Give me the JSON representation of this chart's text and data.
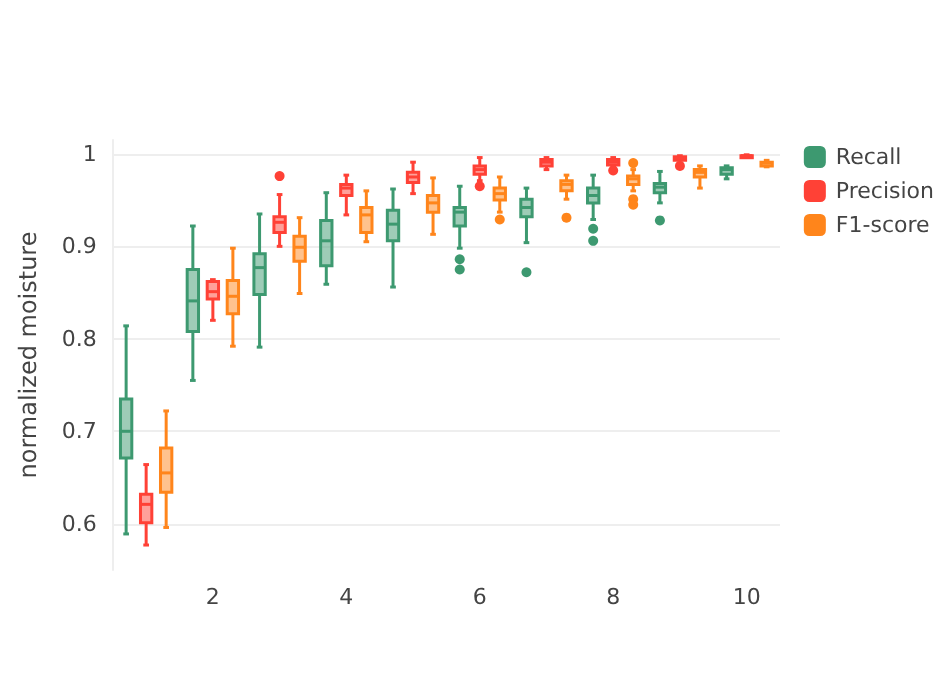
{
  "chart_data": {
    "type": "box",
    "ylabel": "normalized moisture",
    "categories": [
      null,
      "2",
      null,
      "4",
      null,
      "6",
      null,
      "8",
      null,
      "10"
    ],
    "ylim": [
      0.55,
      1.015
    ],
    "yticks": [
      0.6,
      0.7,
      0.8,
      0.9,
      1
    ],
    "grid": "y",
    "legend": "top right",
    "series": [
      {
        "name": "Recall",
        "color": "#3d9970",
        "boxes": [
          {
            "low": 0.589,
            "q1": 0.671,
            "median": 0.7,
            "q3": 0.735,
            "high": 0.814
          },
          {
            "low": 0.755,
            "q1": 0.808,
            "median": 0.841,
            "q3": 0.875,
            "high": 0.922
          },
          {
            "low": 0.791,
            "q1": 0.848,
            "median": 0.877,
            "q3": 0.892,
            "high": 0.935
          },
          {
            "low": 0.859,
            "q1": 0.879,
            "median": 0.906,
            "q3": 0.928,
            "high": 0.958
          },
          {
            "low": 0.856,
            "q1": 0.906,
            "median": 0.924,
            "q3": 0.939,
            "high": 0.962
          },
          {
            "low": 0.898,
            "q1": 0.922,
            "median": 0.937,
            "q3": 0.942,
            "high": 0.965,
            "outliers": [
              0.886,
              0.875
            ]
          },
          {
            "low": 0.904,
            "q1": 0.932,
            "median": 0.942,
            "q3": 0.951,
            "high": 0.963,
            "outliers": [
              0.872
            ]
          },
          {
            "low": 0.929,
            "q1": 0.947,
            "median": 0.955,
            "q3": 0.963,
            "high": 0.977,
            "outliers": [
              0.919,
              0.906
            ]
          },
          {
            "low": 0.947,
            "q1": 0.958,
            "median": 0.964,
            "q3": 0.968,
            "high": 0.981,
            "outliers": [
              0.928
            ]
          },
          {
            "low": 0.973,
            "q1": 0.978,
            "median": 0.983,
            "q3": 0.985,
            "high": 0.987
          }
        ]
      },
      {
        "name": "Precision",
        "color": "#ff4136",
        "boxes": [
          {
            "low": 0.577,
            "q1": 0.601,
            "median": 0.621,
            "q3": 0.632,
            "high": 0.664
          },
          {
            "low": 0.82,
            "q1": 0.843,
            "median": 0.851,
            "q3": 0.862,
            "high": 0.864
          },
          {
            "low": 0.9,
            "q1": 0.915,
            "median": 0.926,
            "q3": 0.932,
            "high": 0.956,
            "outliers": [
              0.976
            ]
          },
          {
            "low": 0.934,
            "q1": 0.955,
            "median": 0.963,
            "q3": 0.967,
            "high": 0.977
          },
          {
            "low": 0.957,
            "q1": 0.969,
            "median": 0.975,
            "q3": 0.98,
            "high": 0.991
          },
          {
            "low": 0.971,
            "q1": 0.978,
            "median": 0.983,
            "q3": 0.987,
            "high": 0.996,
            "outliers": [
              0.965
            ]
          },
          {
            "low": 0.983,
            "q1": 0.987,
            "median": 0.991,
            "q3": 0.994,
            "high": 0.996
          },
          {
            "low": 0.986,
            "q1": 0.988,
            "median": 0.991,
            "q3": 0.994,
            "high": 0.996,
            "outliers": [
              0.982
            ]
          },
          {
            "low": 0.99,
            "q1": 0.993,
            "median": 0.996,
            "q3": 0.997,
            "high": 0.998,
            "outliers": [
              0.987
            ]
          },
          {
            "low": 0.997,
            "q1": 0.997,
            "median": 0.998,
            "q3": 0.998,
            "high": 0.999
          }
        ]
      },
      {
        "name": "F1-score",
        "color": "#ff851b",
        "boxes": [
          {
            "low": 0.596,
            "q1": 0.634,
            "median": 0.655,
            "q3": 0.682,
            "high": 0.722
          },
          {
            "low": 0.792,
            "q1": 0.827,
            "median": 0.846,
            "q3": 0.863,
            "high": 0.898
          },
          {
            "low": 0.849,
            "q1": 0.884,
            "median": 0.899,
            "q3": 0.911,
            "high": 0.931
          },
          {
            "low": 0.905,
            "q1": 0.915,
            "median": 0.934,
            "q3": 0.942,
            "high": 0.96
          },
          {
            "low": 0.913,
            "q1": 0.937,
            "median": 0.947,
            "q3": 0.955,
            "high": 0.974
          },
          {
            "low": 0.937,
            "q1": 0.95,
            "median": 0.957,
            "q3": 0.963,
            "high": 0.975,
            "outliers": [
              0.929
            ]
          },
          {
            "low": 0.951,
            "q1": 0.96,
            "median": 0.967,
            "q3": 0.971,
            "high": 0.977,
            "outliers": [
              0.931
            ]
          },
          {
            "low": 0.96,
            "q1": 0.967,
            "median": 0.973,
            "q3": 0.976,
            "high": 0.983,
            "outliers": [
              0.99,
              0.951,
              0.945
            ]
          },
          {
            "low": 0.963,
            "q1": 0.975,
            "median": 0.98,
            "q3": 0.983,
            "high": 0.987
          },
          {
            "low": 0.986,
            "q1": 0.987,
            "median": 0.99,
            "q3": 0.991,
            "high": 0.993
          }
        ]
      }
    ]
  }
}
